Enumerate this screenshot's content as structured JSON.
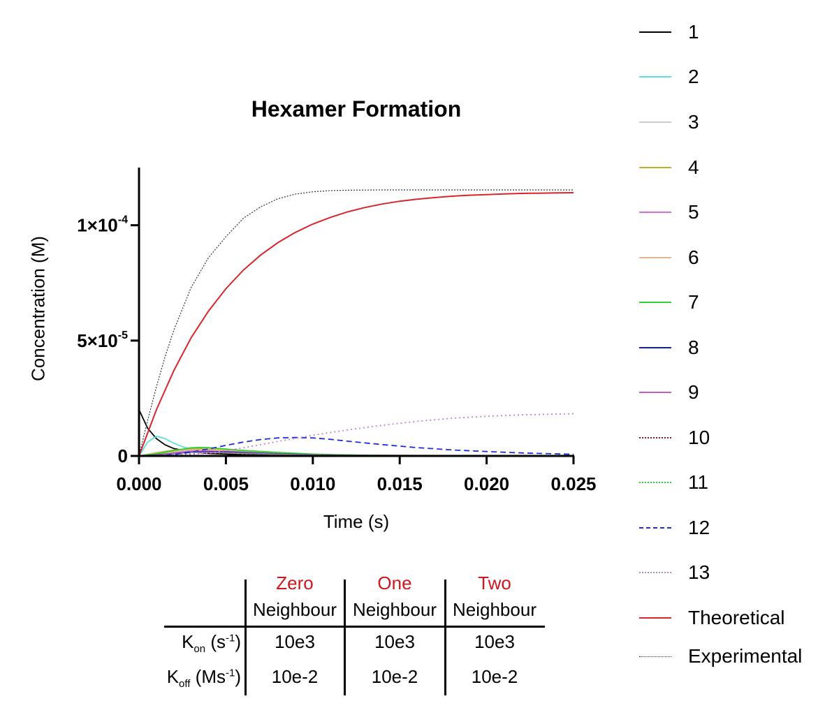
{
  "chart_data": {
    "type": "line",
    "title": "Hexamer Formation",
    "xlabel": "Time (s)",
    "ylabel": "Concentration (M)",
    "xlim": [
      0,
      0.025
    ],
    "ylim": [
      0,
      0.000125
    ],
    "x_ticks": [
      {
        "value": 0,
        "label": "0.000"
      },
      {
        "value": 0.005,
        "label": "0.005"
      },
      {
        "value": 0.01,
        "label": "0.010"
      },
      {
        "value": 0.015,
        "label": "0.015"
      },
      {
        "value": 0.02,
        "label": "0.020"
      },
      {
        "value": 0.025,
        "label": "0.025"
      }
    ],
    "y_ticks": [
      {
        "value": 0,
        "label": "0",
        "exp": ""
      },
      {
        "value": 5e-05,
        "label": "5×10",
        "exp": "-5"
      },
      {
        "value": 0.0001,
        "label": "1×10",
        "exp": "-4"
      }
    ],
    "legend_position": "right",
    "series": [
      {
        "name": "1",
        "color": "#000000",
        "dash": "solid",
        "x": [
          0,
          0.0005,
          0.001,
          0.0015,
          0.002,
          0.003,
          0.004,
          0.006,
          0.008,
          0.01,
          0.015,
          0.025
        ],
        "y": [
          2e-05,
          1.2e-05,
          7.5e-06,
          4.8e-06,
          3.2e-06,
          1.8e-06,
          1.1e-06,
          5e-07,
          2.5e-07,
          1.5e-07,
          5e-08,
          1e-08
        ]
      },
      {
        "name": "2",
        "color": "#5ee0dc",
        "dash": "solid",
        "x": [
          0,
          0.0005,
          0.001,
          0.0015,
          0.002,
          0.0025,
          0.003,
          0.004,
          0.005,
          0.007,
          0.01,
          0.015,
          0.025
        ],
        "y": [
          0,
          6e-06,
          8.5e-06,
          7.5e-06,
          5.5e-06,
          4e-06,
          3e-06,
          2.2e-06,
          1.6e-06,
          9e-07,
          4e-07,
          1e-07,
          1e-08
        ]
      },
      {
        "name": "3",
        "color": "#cccccc",
        "dash": "solid",
        "x": [
          0,
          0.001,
          0.002,
          0.003,
          0.004,
          0.006,
          0.008,
          0.012,
          0.025
        ],
        "y": [
          0,
          1.5e-06,
          2.6e-06,
          2.6e-06,
          2.2e-06,
          1.4e-06,
          8e-07,
          3e-07,
          2e-08
        ]
      },
      {
        "name": "4",
        "color": "#b9b42c",
        "dash": "solid",
        "x": [
          0,
          0.001,
          0.002,
          0.003,
          0.004,
          0.005,
          0.007,
          0.01,
          0.015,
          0.025
        ],
        "y": [
          0,
          1.2e-06,
          2.5e-06,
          3.2e-06,
          3e-06,
          2.4e-06,
          1.4e-06,
          6e-07,
          1.5e-07,
          1e-08
        ]
      },
      {
        "name": "5",
        "color": "#d96bd9",
        "dash": "solid",
        "x": [
          0,
          0.001,
          0.002,
          0.003,
          0.004,
          0.006,
          0.008,
          0.012,
          0.025
        ],
        "y": [
          0,
          5e-07,
          1.4e-06,
          2e-06,
          2e-06,
          1.4e-06,
          8e-07,
          3e-07,
          2e-08
        ]
      },
      {
        "name": "6",
        "color": "#eab38e",
        "dash": "solid",
        "x": [
          0,
          0.001,
          0.002,
          0.003,
          0.004,
          0.006,
          0.008,
          0.012,
          0.025
        ],
        "y": [
          0,
          6e-07,
          1.8e-06,
          2.6e-06,
          2.6e-06,
          1.8e-06,
          1e-06,
          3e-07,
          2e-08
        ]
      },
      {
        "name": "7",
        "color": "#2fcf2f",
        "dash": "solid",
        "x": [
          0,
          0.001,
          0.002,
          0.003,
          0.0035,
          0.004,
          0.005,
          0.006,
          0.008,
          0.01,
          0.012,
          0.015,
          0.025
        ],
        "y": [
          0,
          8e-07,
          2.3e-06,
          3.5e-06,
          3.7e-06,
          3.6e-06,
          3e-06,
          2.4e-06,
          1.5e-06,
          8e-07,
          4e-07,
          1.5e-07,
          1e-08
        ]
      },
      {
        "name": "8",
        "color": "#0b1ec7",
        "dash": "solid",
        "x": [
          0,
          0.001,
          0.002,
          0.003,
          0.004,
          0.005,
          0.006,
          0.008,
          0.01,
          0.012,
          0.015,
          0.025
        ],
        "y": [
          0,
          4e-07,
          1.1e-06,
          1.7e-06,
          1.9e-06,
          1.8e-06,
          1.5e-06,
          9e-07,
          5e-07,
          2.5e-07,
          1e-07,
          1e-08
        ]
      },
      {
        "name": "9",
        "color": "#c65cc6",
        "dash": "solid",
        "x": [
          0,
          0.001,
          0.002,
          0.003,
          0.004,
          0.006,
          0.008,
          0.012,
          0.025
        ],
        "y": [
          0,
          3e-07,
          1e-06,
          1.5e-06,
          1.6e-06,
          1.2e-06,
          7e-07,
          2e-07,
          1e-08
        ]
      },
      {
        "name": "10",
        "color": "#8b1a1a",
        "dash": "dot",
        "x": [
          0,
          0.001,
          0.002,
          0.003,
          0.004,
          0.006,
          0.008,
          0.01,
          0.015,
          0.025
        ],
        "y": [
          0,
          2e-07,
          6e-07,
          1e-06,
          1.2e-06,
          1e-06,
          7e-07,
          4e-07,
          1e-07,
          1e-08
        ]
      },
      {
        "name": "11",
        "color": "#2fcf2f",
        "dash": "dot",
        "x": [
          0,
          0.001,
          0.002,
          0.003,
          0.004,
          0.006,
          0.008,
          0.01,
          0.015,
          0.025
        ],
        "y": [
          0,
          2e-07,
          7e-07,
          1.2e-06,
          1.4e-06,
          1.2e-06,
          8e-07,
          5e-07,
          1.5e-07,
          1e-08
        ]
      },
      {
        "name": "12",
        "color": "#1c2ee0",
        "dash": "dash",
        "x": [
          0,
          0.001,
          0.002,
          0.003,
          0.004,
          0.005,
          0.006,
          0.007,
          0.008,
          0.009,
          0.01,
          0.011,
          0.012,
          0.014,
          0.016,
          0.018,
          0.02,
          0.022,
          0.025
        ],
        "y": [
          0,
          1e-07,
          6e-07,
          1.7e-06,
          3e-06,
          4.6e-06,
          6e-06,
          7.1e-06,
          7.8e-06,
          8e-06,
          7.8e-06,
          7.2e-06,
          6.4e-06,
          4.9e-06,
          3.6e-06,
          2.6e-06,
          1.9e-06,
          1.3e-06,
          7e-07
        ]
      },
      {
        "name": "13",
        "color": "#c77fd1",
        "dash": "dot",
        "x": [
          0,
          0.002,
          0.004,
          0.006,
          0.008,
          0.01,
          0.012,
          0.014,
          0.016,
          0.018,
          0.02,
          0.022,
          0.025
        ],
        "y": [
          0,
          2e-07,
          1.2e-06,
          3.5e-06,
          6.3e-06,
          9e-06,
          1.13e-05,
          1.33e-05,
          1.5e-05,
          1.63e-05,
          1.72e-05,
          1.78e-05,
          1.83e-05
        ]
      },
      {
        "name": "Theoretical",
        "color": "#d9262c",
        "dash": "solid",
        "x": [
          0,
          0.001,
          0.002,
          0.003,
          0.004,
          0.005,
          0.006,
          0.007,
          0.008,
          0.009,
          0.01,
          0.011,
          0.012,
          0.013,
          0.014,
          0.015,
          0.016,
          0.017,
          0.018,
          0.019,
          0.02,
          0.021,
          0.022,
          0.023,
          0.024,
          0.025
        ],
        "y": [
          0,
          2e-05,
          3.7e-05,
          5.12e-05,
          6.28e-05,
          7.25e-05,
          8.05e-05,
          8.71e-05,
          9.25e-05,
          9.69e-05,
          0.0001005,
          0.0001034,
          0.0001058,
          0.0001077,
          0.0001092,
          0.0001104,
          0.0001113,
          0.000112,
          0.0001126,
          0.000113,
          0.0001133,
          0.0001136,
          0.0001138,
          0.0001139,
          0.000114,
          0.0001141
        ]
      },
      {
        "name": "Experimental",
        "color": "#333333",
        "dash": "fine",
        "x": [
          0,
          0.0005,
          0.001,
          0.0015,
          0.002,
          0.003,
          0.004,
          0.005,
          0.006,
          0.007,
          0.008,
          0.009,
          0.01,
          0.011,
          0.012,
          0.014,
          0.016,
          0.02,
          0.025
        ],
        "y": [
          0,
          1.55e-05,
          3e-05,
          4.3e-05,
          5.45e-05,
          7.3e-05,
          8.6e-05,
          9.5e-05,
          0.000103,
          0.000108,
          0.0001115,
          0.0001135,
          0.0001145,
          0.000115,
          0.0001152,
          0.0001153,
          0.0001153,
          0.0001153,
          0.0001153
        ]
      }
    ]
  },
  "table": {
    "headers": [
      {
        "top": "Zero",
        "bottom": "Neighbour"
      },
      {
        "top": "One",
        "bottom": "Neighbour"
      },
      {
        "top": "Two",
        "bottom": "Neighbour"
      }
    ],
    "rows": [
      {
        "label_main": "K",
        "label_sub": "on",
        "label_unit": " (s",
        "label_sup": "-1",
        "label_close": ")",
        "values": [
          "10e3",
          "10e3",
          "10e3"
        ]
      },
      {
        "label_main": "K",
        "label_sub": "off",
        "label_unit": " (Ms",
        "label_sup": "-1",
        "label_close": ")",
        "values": [
          "10e-2",
          "10e-2",
          "10e-2"
        ]
      }
    ]
  }
}
